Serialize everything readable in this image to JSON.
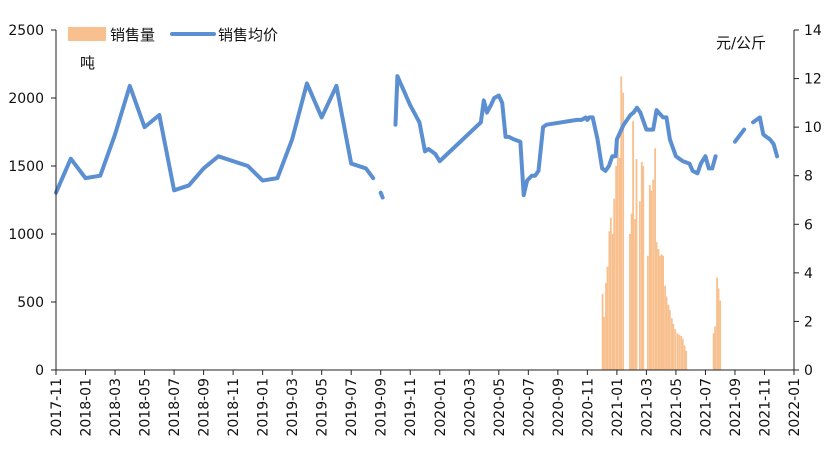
{
  "chart_data": {
    "type": "bar+line",
    "title": "",
    "legend": {
      "placement": "top-left",
      "items": [
        {
          "name": "销售量",
          "kind": "bar",
          "color": "#F8C08E"
        },
        {
          "name": "销售均价",
          "kind": "line",
          "color": "#5B8FD2"
        }
      ]
    },
    "left_axis": {
      "unit": "吨",
      "ylim": [
        0,
        2500
      ],
      "ticks": [
        0,
        500,
        1000,
        1500,
        2000,
        2500
      ]
    },
    "right_axis": {
      "unit": "元/公斤",
      "ylim": [
        0,
        14
      ],
      "ticks": [
        0,
        2,
        4,
        6,
        8,
        10,
        12,
        14
      ]
    },
    "x_axis": {
      "range": [
        "2017-11",
        "2022-01"
      ],
      "tick_labels": [
        "2017-11",
        "2018-01",
        "2018-03",
        "2018-05",
        "2018-07",
        "2018-09",
        "2018-11",
        "2019-01",
        "2019-03",
        "2019-05",
        "2019-07",
        "2019-09",
        "2019-11",
        "2020-01",
        "2020-03",
        "2020-05",
        "2020-07",
        "2020-09",
        "2020-11",
        "2021-01",
        "2021-03",
        "2021-05",
        "2021-07",
        "2021-09",
        "2021-11",
        "2022-01"
      ]
    },
    "grid": false,
    "series": [
      {
        "name": "销售量",
        "axis": "left",
        "color": "#F8C08E",
        "points": [
          [
            "2020-12-02",
            560
          ],
          [
            "2020-12-05",
            390
          ],
          [
            "2020-12-09",
            640
          ],
          [
            "2020-12-12",
            760
          ],
          [
            "2020-12-16",
            1020
          ],
          [
            "2020-12-19",
            1120
          ],
          [
            "2020-12-23",
            1000
          ],
          [
            "2020-12-26",
            1260
          ],
          [
            "2020-12-30",
            1500
          ],
          [
            "2021-01-03",
            1700
          ],
          [
            "2021-01-07",
            1560
          ],
          [
            "2021-01-10",
            2160
          ],
          [
            "2021-01-14",
            2040
          ],
          [
            "2021-01-28",
            1000
          ],
          [
            "2021-02-01",
            1150
          ],
          [
            "2021-02-04",
            1830
          ],
          [
            "2021-02-08",
            1110
          ],
          [
            "2021-02-11",
            1550
          ],
          [
            "2021-02-18",
            1240
          ],
          [
            "2021-02-22",
            1530
          ],
          [
            "2021-02-25",
            1500
          ],
          [
            "2021-03-04",
            840
          ],
          [
            "2021-03-08",
            1360
          ],
          [
            "2021-03-11",
            1320
          ],
          [
            "2021-03-15",
            1400
          ],
          [
            "2021-03-19",
            1630
          ],
          [
            "2021-03-22",
            940
          ],
          [
            "2021-03-26",
            890
          ],
          [
            "2021-03-29",
            840
          ],
          [
            "2021-04-02",
            850
          ],
          [
            "2021-04-05",
            840
          ],
          [
            "2021-04-09",
            620
          ],
          [
            "2021-04-12",
            540
          ],
          [
            "2021-04-16",
            480
          ],
          [
            "2021-04-19",
            440
          ],
          [
            "2021-04-23",
            380
          ],
          [
            "2021-04-26",
            340
          ],
          [
            "2021-04-30",
            300
          ],
          [
            "2021-05-04",
            270
          ],
          [
            "2021-05-08",
            260
          ],
          [
            "2021-05-12",
            250
          ],
          [
            "2021-05-15",
            230
          ],
          [
            "2021-05-19",
            180
          ],
          [
            "2021-05-22",
            140
          ],
          [
            "2021-07-18",
            270
          ],
          [
            "2021-07-21",
            320
          ],
          [
            "2021-07-25",
            680
          ],
          [
            "2021-07-28",
            600
          ],
          [
            "2021-08-01",
            510
          ]
        ]
      },
      {
        "name": "销售均价",
        "axis": "right",
        "color": "#5B8FD2",
        "segments": [
          [
            [
              "2017-11-01",
              7.3
            ],
            [
              "2017-12-01",
              8.7
            ],
            [
              "2018-01-01",
              7.9
            ],
            [
              "2018-02-01",
              8.0
            ],
            [
              "2018-03-01",
              9.7
            ],
            [
              "2018-04-01",
              11.7
            ],
            [
              "2018-05-01",
              10.0
            ],
            [
              "2018-06-01",
              10.5
            ],
            [
              "2018-07-01",
              7.4
            ],
            [
              "2018-08-01",
              7.6
            ],
            [
              "2018-09-01",
              8.3
            ],
            [
              "2018-10-01",
              8.8
            ],
            [
              "2018-12-01",
              8.4
            ],
            [
              "2019-01-01",
              7.8
            ],
            [
              "2019-02-01",
              7.9
            ],
            [
              "2019-03-01",
              9.5
            ],
            [
              "2019-04-01",
              11.8
            ],
            [
              "2019-05-01",
              10.4
            ],
            [
              "2019-06-01",
              11.7
            ],
            [
              "2019-07-01",
              8.5
            ],
            [
              "2019-08-01",
              8.3
            ],
            [
              "2019-08-16",
              7.9
            ]
          ],
          [
            [
              "2019-09-01",
              7.3
            ],
            [
              "2019-09-05",
              7.1
            ]
          ],
          [
            [
              "2019-10-01",
              10.1
            ],
            [
              "2019-10-05",
              12.1
            ],
            [
              "2019-11-01",
              10.9
            ],
            [
              "2019-11-20",
              10.2
            ],
            [
              "2019-12-01",
              9.0
            ],
            [
              "2019-12-08",
              9.1
            ],
            [
              "2019-12-15",
              9.0
            ],
            [
              "2019-12-22",
              8.9
            ],
            [
              "2020-01-01",
              8.6
            ],
            [
              "2020-03-25",
              10.2
            ],
            [
              "2020-03-31",
              11.1
            ],
            [
              "2020-04-07",
              10.6
            ],
            [
              "2020-04-15",
              10.9
            ],
            [
              "2020-04-22",
              11.2
            ],
            [
              "2020-05-01",
              11.3
            ],
            [
              "2020-05-08",
              11.0
            ],
            [
              "2020-05-15",
              9.6
            ],
            [
              "2020-05-22",
              9.6
            ],
            [
              "2020-06-01",
              9.5
            ],
            [
              "2020-06-15",
              9.4
            ],
            [
              "2020-06-22",
              7.2
            ],
            [
              "2020-06-29",
              7.8
            ],
            [
              "2020-07-08",
              8.0
            ],
            [
              "2020-07-15",
              8.0
            ],
            [
              "2020-07-22",
              8.2
            ],
            [
              "2020-08-01",
              10.0
            ],
            [
              "2020-08-08",
              10.1
            ],
            [
              "2020-10-10",
              10.3
            ],
            [
              "2020-10-20",
              10.3
            ],
            [
              "2020-10-28",
              10.4
            ],
            [
              "2020-11-01",
              10.3
            ],
            [
              "2020-11-05",
              10.4
            ],
            [
              "2020-11-12",
              10.4
            ],
            [
              "2020-11-22",
              9.5
            ],
            [
              "2020-12-01",
              8.3
            ],
            [
              "2020-12-08",
              8.2
            ],
            [
              "2020-12-15",
              8.4
            ],
            [
              "2020-12-22",
              8.8
            ],
            [
              "2020-12-29",
              8.8
            ],
            [
              "2021-01-01",
              9.5
            ],
            [
              "2021-01-15",
              10.1
            ],
            [
              "2021-01-29",
              10.5
            ],
            [
              "2021-02-05",
              10.6
            ],
            [
              "2021-02-12",
              10.8
            ],
            [
              "2021-02-19",
              10.6
            ],
            [
              "2021-03-01",
              9.9
            ],
            [
              "2021-03-15",
              9.9
            ],
            [
              "2021-03-22",
              10.7
            ],
            [
              "2021-04-05",
              10.4
            ],
            [
              "2021-04-12",
              10.4
            ],
            [
              "2021-04-19",
              9.5
            ],
            [
              "2021-05-01",
              8.8
            ],
            [
              "2021-05-15",
              8.6
            ],
            [
              "2021-05-29",
              8.5
            ],
            [
              "2021-06-05",
              8.2
            ],
            [
              "2021-06-15",
              8.1
            ],
            [
              "2021-06-22",
              8.5
            ],
            [
              "2021-07-01",
              8.8
            ],
            [
              "2021-07-08",
              8.3
            ],
            [
              "2021-07-15",
              8.3
            ],
            [
              "2021-07-22",
              8.8
            ]
          ],
          [
            [
              "2021-09-01",
              9.4
            ],
            [
              "2021-09-20",
              9.9
            ]
          ],
          [
            [
              "2021-10-08",
              10.2
            ],
            [
              "2021-10-22",
              10.4
            ],
            [
              "2021-10-29",
              9.7
            ],
            [
              "2021-11-05",
              9.6
            ],
            [
              "2021-11-12",
              9.5
            ],
            [
              "2021-11-20",
              9.3
            ],
            [
              "2021-11-27",
              8.8
            ]
          ]
        ]
      }
    ]
  }
}
